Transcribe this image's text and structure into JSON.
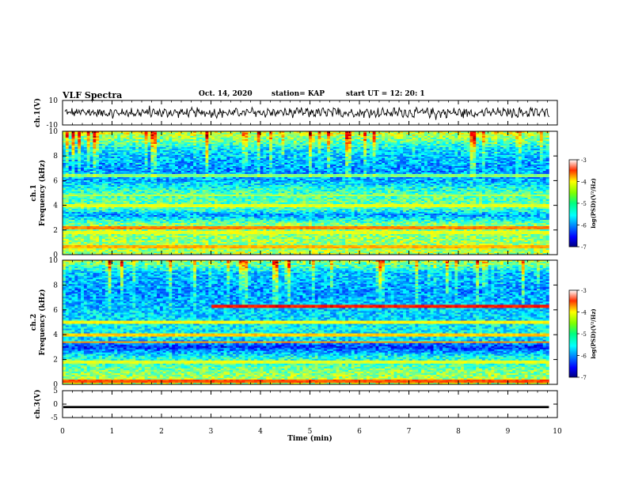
{
  "header": {
    "title": "VLF Spectra",
    "date": "Oct. 14, 2020",
    "station": "station= KAP",
    "start": "start  UT =  12: 20: 1"
  },
  "chart_data": [
    {
      "type": "line",
      "panel": "ch1-waveform",
      "ylabel": "ch.1(V)",
      "ylim": [
        -10,
        10
      ],
      "yticks": [
        -10,
        10
      ],
      "xlim": [
        0,
        10
      ],
      "description_level": "noisy waveform centered near 0 with amplitude about ±4 V"
    },
    {
      "type": "heatmap",
      "panel": "ch1-spectrogram",
      "ylabel": "ch.1\nFrequency (kHz)",
      "ylim": [
        0,
        10
      ],
      "yticks": [
        "0",
        "2",
        "4",
        "6",
        "8",
        "10"
      ],
      "xlim": [
        0,
        9.83
      ],
      "colorbar": {
        "ticks": [
          "-3",
          "-4",
          "-5",
          "-6",
          "-7"
        ],
        "range": [
          -7,
          -3
        ],
        "label": "log(PSD)(V²/Hz)"
      },
      "bands_khz": [
        {
          "f": 0.6,
          "level": -4.2
        },
        {
          "f": 1.8,
          "level": -4.6
        },
        {
          "f": 2.2,
          "level": -4.0
        },
        {
          "f": 4.0,
          "level": -4.6
        },
        {
          "f": 4.8,
          "level": -4.8
        },
        {
          "f": 6.4,
          "level": -5.0
        }
      ],
      "background_by_khz": [
        {
          "f": 0,
          "level": -4.8
        },
        {
          "f": 1.0,
          "level": -4.9
        },
        {
          "f": 2.5,
          "level": -5.0
        },
        {
          "f": 3.2,
          "level": -5.9
        },
        {
          "f": 3.8,
          "level": -5.1
        },
        {
          "f": 5.0,
          "level": -5.2
        },
        {
          "f": 6.0,
          "level": -5.8
        },
        {
          "f": 7.0,
          "level": -5.9
        },
        {
          "f": 8.5,
          "level": -5.6
        },
        {
          "f": 10.0,
          "level": -4.6
        }
      ]
    },
    {
      "type": "heatmap",
      "panel": "ch2-spectrogram",
      "ylabel": "ch.2\nFrequency (kHz)",
      "ylim": [
        0,
        10
      ],
      "yticks": [
        "0",
        "2",
        "4",
        "6",
        "8",
        "10"
      ],
      "xlim": [
        0,
        9.83
      ],
      "colorbar": {
        "ticks": [
          "-3",
          "-4",
          "-5",
          "-6",
          "-7"
        ],
        "range": [
          -7,
          -3
        ],
        "label": "log(PSD)(V²/Hz)"
      },
      "bands_khz": [
        {
          "f": 0.3,
          "level": -3.8
        },
        {
          "f": 1.8,
          "level": -4.6
        },
        {
          "f": 3.4,
          "level": -4.1
        },
        {
          "f": 4.0,
          "level": -4.3
        },
        {
          "f": 5.0,
          "level": -4.5
        },
        {
          "f": 6.3,
          "level": -3.6,
          "from_min": 3.0
        }
      ],
      "background_by_khz": [
        {
          "f": 0,
          "level": -4.7
        },
        {
          "f": 1.0,
          "level": -5.0
        },
        {
          "f": 2.2,
          "level": -5.4
        },
        {
          "f": 3.0,
          "level": -6.3
        },
        {
          "f": 3.6,
          "level": -5.6
        },
        {
          "f": 4.5,
          "level": -5.5
        },
        {
          "f": 6.0,
          "level": -5.7
        },
        {
          "f": 7.5,
          "level": -5.9
        },
        {
          "f": 9.0,
          "level": -5.7
        },
        {
          "f": 10.0,
          "level": -4.8
        }
      ]
    },
    {
      "type": "line",
      "panel": "ch3-waveform",
      "ylabel": "ch.3(V)",
      "ylim": [
        -5,
        5
      ],
      "yticks": [
        "5",
        "0",
        "-5"
      ],
      "xlim": [
        0,
        10
      ],
      "description_level": "flat trace near -1 V with small jitter"
    }
  ],
  "xaxis": {
    "label": "Time (min)",
    "ticks": [
      "0",
      "1",
      "2",
      "3",
      "4",
      "5",
      "6",
      "7",
      "8",
      "9",
      "10"
    ]
  },
  "colors": {
    "jet_low": "#00007f",
    "jet_high": "#7f0000",
    "frame": "#000000"
  }
}
